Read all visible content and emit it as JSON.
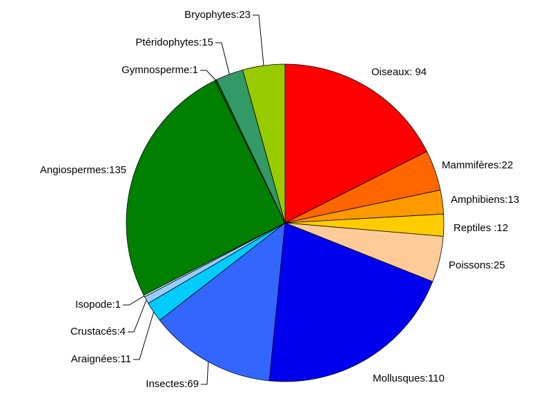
{
  "chart_data": {
    "type": "pie",
    "values": [
      94,
      22,
      13,
      12,
      25,
      110,
      69,
      11,
      4,
      1,
      135,
      1,
      15,
      23
    ],
    "value_labels": [
      "Oiseaux: 94",
      "Mammifères:22",
      "Amphibiens:13",
      "Reptiles :12",
      "Poissons:25",
      "Mollusques:110",
      "Insectes:69",
      "Araignées:11",
      "Crustacés:4",
      "Isopode:1",
      "Angiospermes:135",
      "Gymnosperme:1",
      "Ptéridophytes:15",
      "Bryophytes:23"
    ],
    "colors": [
      "#ff0000",
      "#ff6600",
      "#ff9900",
      "#ffcc00",
      "#ffcc99",
      "#0000ee",
      "#3366ff",
      "#00ccff",
      "#99ccff",
      "#cceeff",
      "#008000",
      "#006400",
      "#339966",
      "#99cc00"
    ]
  }
}
